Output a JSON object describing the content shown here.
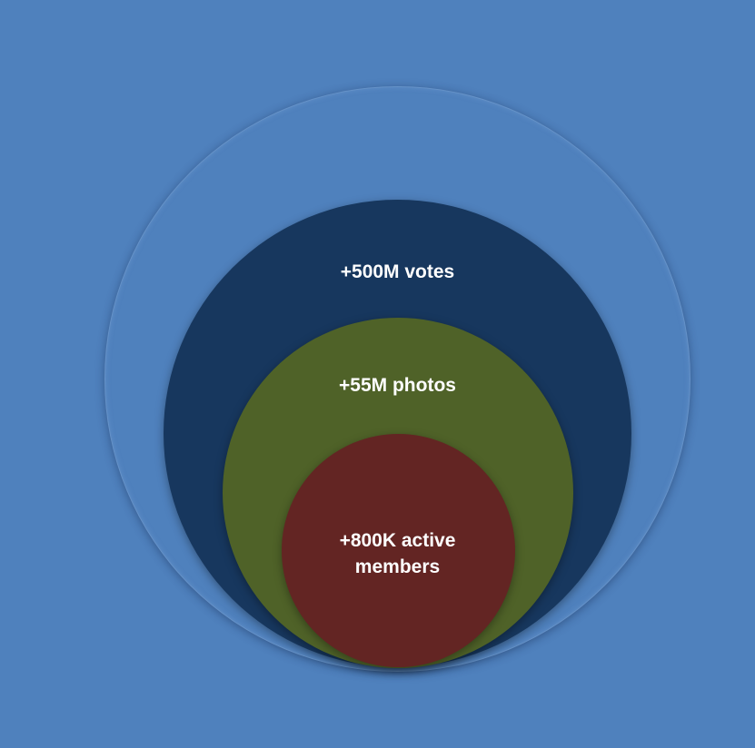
{
  "diagram": {
    "type": "nested-circles",
    "layers": [
      {
        "id": "outer",
        "label": "",
        "color": "#4f81bd"
      },
      {
        "id": "votes",
        "label": "+500M votes",
        "color": "#17375e"
      },
      {
        "id": "photos",
        "label": "+55M photos",
        "color": "#4f6228"
      },
      {
        "id": "members",
        "label": "+800K active members",
        "color": "#632523"
      }
    ]
  },
  "colors": {
    "background": "#4f81bd",
    "text": "#ffffff"
  }
}
